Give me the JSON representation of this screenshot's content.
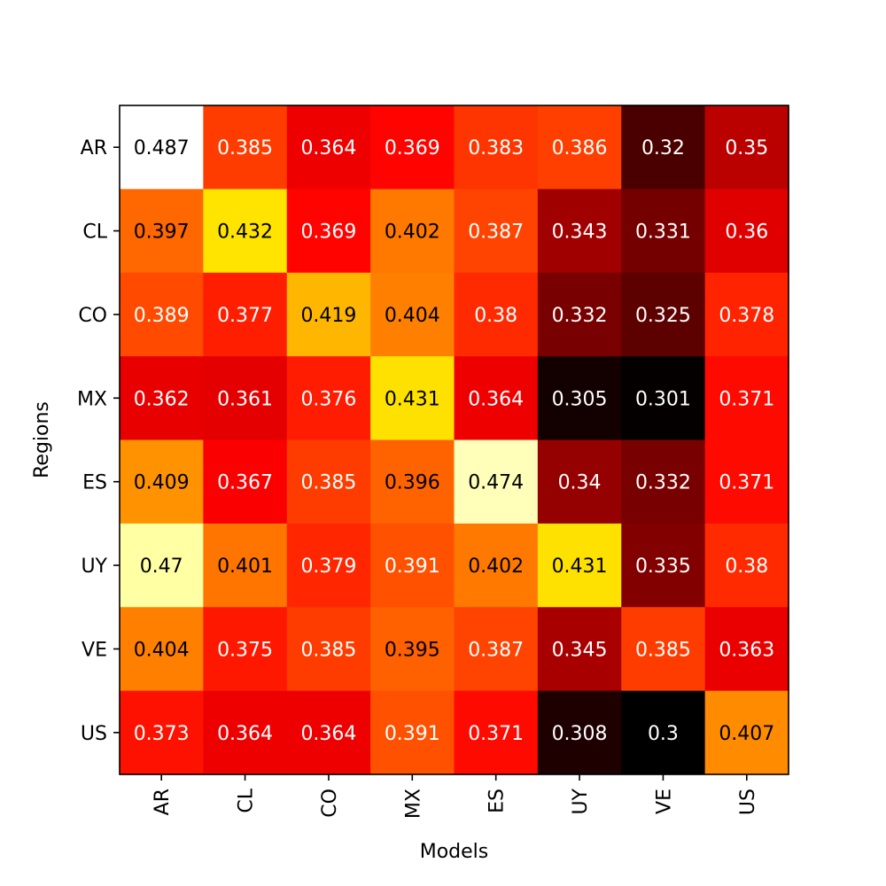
{
  "chart_data": {
    "type": "heatmap",
    "xlabel": "Models",
    "ylabel": "Regions",
    "x_categories": [
      "AR",
      "CL",
      "CO",
      "MX",
      "ES",
      "UY",
      "VE",
      "US"
    ],
    "y_categories": [
      "AR",
      "CL",
      "CO",
      "MX",
      "ES",
      "UY",
      "VE",
      "US"
    ],
    "values": [
      [
        0.487,
        0.385,
        0.364,
        0.369,
        0.383,
        0.386,
        0.32,
        0.35
      ],
      [
        0.397,
        0.432,
        0.369,
        0.402,
        0.387,
        0.343,
        0.331,
        0.36
      ],
      [
        0.389,
        0.377,
        0.419,
        0.404,
        0.38,
        0.332,
        0.325,
        0.378
      ],
      [
        0.362,
        0.361,
        0.376,
        0.431,
        0.364,
        0.305,
        0.301,
        0.371
      ],
      [
        0.409,
        0.367,
        0.385,
        0.396,
        0.474,
        0.34,
        0.332,
        0.371
      ],
      [
        0.47,
        0.401,
        0.379,
        0.391,
        0.402,
        0.431,
        0.335,
        0.38
      ],
      [
        0.404,
        0.375,
        0.385,
        0.395,
        0.387,
        0.345,
        0.385,
        0.363
      ],
      [
        0.373,
        0.364,
        0.364,
        0.391,
        0.371,
        0.308,
        0.3,
        0.407
      ]
    ],
    "colormap": "hot",
    "value_range": [
      0.3,
      0.487
    ],
    "text_colors": {
      "dark": "#000000",
      "light": "#ffffff"
    }
  }
}
